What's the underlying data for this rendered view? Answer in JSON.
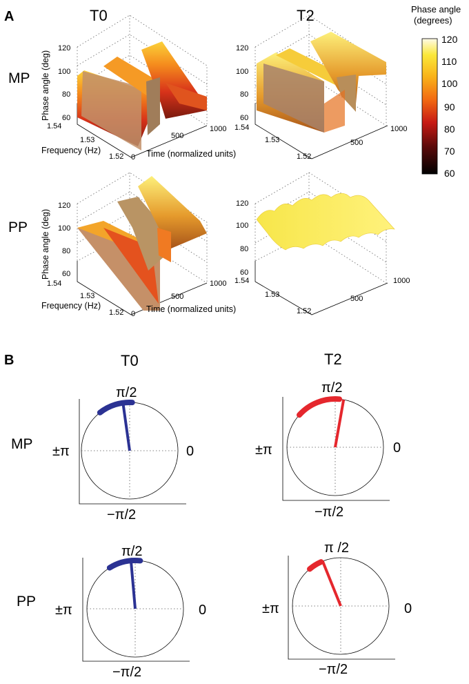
{
  "figure": {
    "panel_a": "A",
    "panel_b": "B",
    "col_titles": [
      "T0",
      "T2"
    ],
    "row_labels": [
      "MP",
      "PP"
    ],
    "axis_z_label": "Phase angle (deg)",
    "axis_y_label": "Frequency (Hz)",
    "axis_x_label": "Time (normalized units)",
    "colorbar_title_1": "Phase angle",
    "colorbar_title_2": "(degrees)",
    "polar_labels": {
      "top": "π/2",
      "top_alt": "π /2",
      "left": "±π",
      "right": "0",
      "bottom": "−π/2"
    }
  },
  "colors": {
    "blue": "#2b3293",
    "red": "#e5272d",
    "axis": "#000000"
  },
  "chart_data": [
    {
      "type": "surface",
      "title": "MP T0",
      "zlabel": "Phase angle (deg)",
      "ylabel": "Frequency (Hz)",
      "xlabel": "Time (normalized units)",
      "z_ticks": [
        60,
        80,
        100,
        120
      ],
      "y_ticks": [
        1.52,
        1.53,
        1.54
      ],
      "x_ticks": [
        0,
        500,
        1000
      ],
      "zlim": [
        60,
        120
      ],
      "profile_time": [
        0,
        150,
        300,
        450,
        600,
        750,
        1000
      ],
      "profile_phase": [
        105,
        75,
        105,
        80,
        108,
        95,
        90
      ]
    },
    {
      "type": "surface",
      "title": "MP T2",
      "z_ticks": [
        60,
        80,
        100,
        120
      ],
      "y_ticks": [
        1.52,
        1.53,
        1.54
      ],
      "x_ticks": [
        500,
        1000
      ],
      "zlim": [
        60,
        120
      ],
      "profile_time": [
        0,
        150,
        300,
        450,
        600,
        750,
        1000
      ],
      "profile_phase": [
        108,
        78,
        112,
        82,
        114,
        110,
        112
      ]
    },
    {
      "type": "surface",
      "title": "PP T0",
      "zlabel": "Phase angle (deg)",
      "ylabel": "Frequency (Hz)",
      "xlabel": "Time (normalized units)",
      "z_ticks": [
        60,
        80,
        100,
        120
      ],
      "y_ticks": [
        1.52,
        1.53,
        1.54
      ],
      "x_ticks": [
        0,
        500,
        1000
      ],
      "zlim": [
        60,
        120
      ],
      "profile_time": [
        0,
        200,
        350,
        450,
        550,
        700,
        1000
      ],
      "profile_phase": [
        95,
        85,
        110,
        70,
        115,
        112,
        108
      ]
    },
    {
      "type": "surface",
      "title": "PP T2",
      "z_ticks": [
        60,
        80,
        100,
        120
      ],
      "y_ticks": [
        1.52,
        1.53,
        1.54
      ],
      "x_ticks": [
        500,
        1000
      ],
      "zlim": [
        60,
        120
      ],
      "profile_time": [
        0,
        250,
        500,
        750,
        1000
      ],
      "profile_phase": [
        112,
        113,
        112,
        113,
        112
      ]
    },
    {
      "type": "colorbar",
      "title": "Phase angle (degrees)",
      "ticks": [
        60,
        70,
        80,
        90,
        100,
        110,
        120
      ],
      "range": [
        60,
        120
      ]
    },
    {
      "type": "polar",
      "title": "MP T0",
      "mean_angle_deg": 98,
      "arc_start_deg": 87,
      "arc_end_deg": 128,
      "color": "blue"
    },
    {
      "type": "polar",
      "title": "MP T2",
      "mean_angle_deg": 80,
      "arc_start_deg": 85,
      "arc_end_deg": 138,
      "color": "red"
    },
    {
      "type": "polar",
      "title": "PP T0",
      "mean_angle_deg": 95,
      "arc_start_deg": 84,
      "arc_end_deg": 122,
      "color": "blue"
    },
    {
      "type": "polar",
      "title": "PP T2",
      "mean_angle_deg": 112,
      "arc_start_deg": 114,
      "arc_end_deg": 130,
      "color": "red"
    }
  ]
}
